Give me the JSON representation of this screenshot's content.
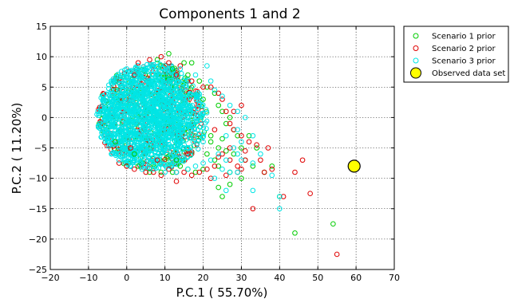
{
  "chart_data": {
    "type": "scatter",
    "title": "Components 1 and 2",
    "xlabel": "P.C.1 (   55.70%)",
    "ylabel": "P.C.2 (   11.20%)",
    "xlim": [
      -20,
      70
    ],
    "ylim": [
      -25,
      15
    ],
    "xticks": [
      -20,
      -10,
      0,
      10,
      20,
      30,
      40,
      50,
      60,
      70
    ],
    "yticks": [
      -25,
      -20,
      -15,
      -10,
      -5,
      0,
      5,
      10,
      15
    ],
    "grid": true,
    "legend_position": "outside-top-right",
    "series": [
      {
        "name": "Scenario 1 prior",
        "color": "#00cc00",
        "marker": "open-circle",
        "points": [
          [
            11,
            10.5
          ],
          [
            8,
            9.5
          ],
          [
            15,
            9
          ],
          [
            17,
            9
          ],
          [
            12,
            8
          ],
          [
            16,
            7
          ],
          [
            19,
            6
          ],
          [
            21,
            5
          ],
          [
            23,
            4
          ],
          [
            24,
            2
          ],
          [
            25,
            1
          ],
          [
            27,
            0
          ],
          [
            26,
            -1
          ],
          [
            28,
            -2
          ],
          [
            29,
            -3
          ],
          [
            22,
            -4
          ],
          [
            24,
            -5
          ],
          [
            26,
            -5.5
          ],
          [
            28,
            -6
          ],
          [
            30,
            -5
          ],
          [
            21,
            -6
          ],
          [
            23,
            -7
          ],
          [
            24,
            -8
          ],
          [
            20,
            -8.5
          ],
          [
            18,
            -9
          ],
          [
            16,
            -8.5
          ],
          [
            14,
            -8
          ],
          [
            12,
            -9
          ],
          [
            9,
            -9
          ],
          [
            6,
            -9
          ],
          [
            3,
            -8
          ],
          [
            0,
            -8
          ],
          [
            31,
            -7
          ],
          [
            33,
            -8
          ],
          [
            36,
            -9
          ],
          [
            38,
            -8
          ],
          [
            24,
            -11.5
          ],
          [
            25,
            -13
          ],
          [
            27,
            -11
          ],
          [
            40,
            -13
          ],
          [
            44,
            -19
          ],
          [
            54,
            -17.5
          ],
          [
            34,
            -5
          ],
          [
            32,
            -3
          ],
          [
            27,
            -9
          ],
          [
            30,
            -10
          ],
          [
            13,
            -7
          ],
          [
            2,
            -6
          ],
          [
            -3,
            -4
          ],
          [
            20,
            3
          ],
          [
            22,
            -3
          ],
          [
            25,
            -3.5
          ]
        ]
      },
      {
        "name": "Scenario 2 prior",
        "color": "#e00000",
        "marker": "open-circle",
        "points": [
          [
            9,
            10
          ],
          [
            6,
            9.5
          ],
          [
            3,
            9
          ],
          [
            11,
            9
          ],
          [
            14,
            8.5
          ],
          [
            2,
            7
          ],
          [
            13,
            7
          ],
          [
            17,
            6
          ],
          [
            20,
            5
          ],
          [
            22,
            5
          ],
          [
            24,
            4
          ],
          [
            25,
            3
          ],
          [
            26,
            1
          ],
          [
            28,
            1
          ],
          [
            30,
            2
          ],
          [
            27,
            -1
          ],
          [
            28,
            -2
          ],
          [
            30,
            -3
          ],
          [
            32,
            -4
          ],
          [
            31,
            -5.5
          ],
          [
            34,
            -4.5
          ],
          [
            37,
            -5
          ],
          [
            38,
            -8.5
          ],
          [
            36,
            -9
          ],
          [
            29,
            -8
          ],
          [
            27,
            -7
          ],
          [
            25,
            -6
          ],
          [
            23,
            -8
          ],
          [
            21,
            -8.5
          ],
          [
            19,
            -9
          ],
          [
            17,
            -9.5
          ],
          [
            15,
            -9
          ],
          [
            13,
            -9
          ],
          [
            11,
            -8.5
          ],
          [
            9,
            -9.5
          ],
          [
            7,
            -9
          ],
          [
            5,
            -9
          ],
          [
            2,
            -8.5
          ],
          [
            0,
            -8
          ],
          [
            -2,
            -7.5
          ],
          [
            13,
            -10.5
          ],
          [
            22,
            -10
          ],
          [
            26,
            -9.5
          ],
          [
            29,
            -9
          ],
          [
            41,
            -13
          ],
          [
            46,
            -7
          ],
          [
            48,
            -12.5
          ],
          [
            33,
            -15
          ],
          [
            55,
            -22.5
          ],
          [
            44,
            -9
          ],
          [
            35,
            -7
          ],
          [
            30,
            -8.5
          ],
          [
            8,
            -7
          ],
          [
            1,
            -5
          ],
          [
            16,
            -6
          ],
          [
            23,
            -2
          ],
          [
            24,
            -6.5
          ],
          [
            27,
            -5
          ],
          [
            31,
            -7
          ]
        ]
      },
      {
        "name": "Scenario 3 prior",
        "color": "#00e5e5",
        "marker": "open-circle",
        "points": [
          [
            8,
            9
          ],
          [
            14,
            8
          ],
          [
            18,
            7
          ],
          [
            21,
            8.5
          ],
          [
            10,
            8.5
          ],
          [
            5,
            8
          ],
          [
            3,
            7
          ],
          [
            22,
            6
          ],
          [
            23,
            4.5
          ],
          [
            25,
            3.5
          ],
          [
            27,
            2
          ],
          [
            29,
            1
          ],
          [
            31,
            0
          ],
          [
            29,
            -2
          ],
          [
            33,
            -3
          ],
          [
            30,
            -4
          ],
          [
            26,
            -3
          ],
          [
            28,
            -5
          ],
          [
            24,
            -6
          ],
          [
            22,
            -7
          ],
          [
            20,
            -7.5
          ],
          [
            18,
            -8
          ],
          [
            16,
            -8.5
          ],
          [
            13,
            -9
          ],
          [
            10,
            -9
          ],
          [
            7,
            -8.5
          ],
          [
            4,
            -8.5
          ],
          [
            1,
            -8
          ],
          [
            -2,
            -7
          ],
          [
            -4,
            -6
          ],
          [
            25,
            -8.5
          ],
          [
            27,
            -9
          ],
          [
            29,
            -9
          ],
          [
            30,
            -7
          ],
          [
            33,
            -7.5
          ],
          [
            35,
            -6
          ],
          [
            38,
            -9.5
          ],
          [
            40,
            -13
          ],
          [
            40,
            -15
          ],
          [
            33,
            -12
          ],
          [
            26,
            -12
          ],
          [
            23,
            -10
          ],
          [
            -6,
            -3
          ],
          [
            -6,
            3
          ],
          [
            -4,
            6
          ],
          [
            0,
            8
          ],
          [
            15,
            -5
          ],
          [
            20,
            -4
          ],
          [
            26,
            -7
          ],
          [
            29,
            -6
          ]
        ]
      },
      {
        "name": "Observed data set",
        "color": "#ffff00",
        "marker": "filled-large-circle",
        "points": [
          [
            59.5,
            -8
          ]
        ]
      }
    ],
    "dense_cloud": {
      "description_color": "#00e5e5",
      "approx_x_range": [
        -8,
        20
      ],
      "approx_y_range": [
        -8,
        8
      ]
    }
  }
}
